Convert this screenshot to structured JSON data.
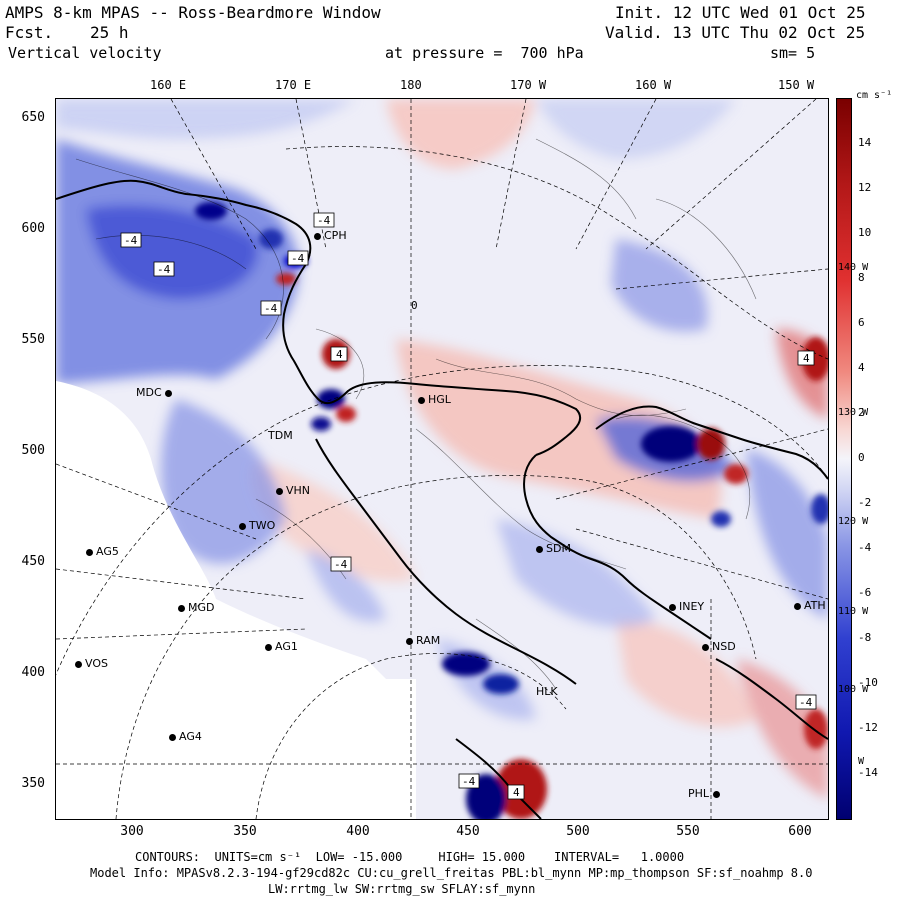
{
  "header": {
    "title": "AMPS 8-km MPAS -- Ross-Beardmore Window",
    "fcst_label": "Fcst.",
    "fcst_value": "25 h",
    "field": "Vertical velocity",
    "init": "Init. 12 UTC Wed 01 Oct 25",
    "valid": "Valid. 13 UTC Thu 02 Oct 25",
    "pressure": "at pressure =  700 hPa",
    "smooth": "sm= 5"
  },
  "lon_labels": [
    "160 E",
    "170 E",
    "180",
    "170 W",
    "160 W",
    "150 W"
  ],
  "y_ticks": [
    "650",
    "600",
    "550",
    "500",
    "450",
    "400",
    "350"
  ],
  "x_ticks": [
    "300",
    "350",
    "400",
    "450",
    "500",
    "550",
    "600"
  ],
  "colorbar": {
    "units": "cm s⁻¹",
    "ticks": [
      "14",
      "12",
      "10",
      "8",
      "6",
      "4",
      "2",
      "0",
      "-2",
      "-4",
      "-6",
      "-8",
      "-10",
      "-12",
      "-14"
    ],
    "side_labels": [
      "140 W",
      "130 W",
      "120 W",
      "110 W",
      "100 W",
      "W"
    ]
  },
  "stations": [
    {
      "name": "CPH"
    },
    {
      "name": "MDC"
    },
    {
      "name": "HGL"
    },
    {
      "name": "TDM"
    },
    {
      "name": "VHN"
    },
    {
      "name": "TWO"
    },
    {
      "name": "AG5"
    },
    {
      "name": "SDM"
    },
    {
      "name": "MGD"
    },
    {
      "name": "AG1"
    },
    {
      "name": "VOS"
    },
    {
      "name": "AG4"
    },
    {
      "name": "INEY"
    },
    {
      "name": "NSD"
    },
    {
      "name": "HLK"
    },
    {
      "name": "PHL"
    },
    {
      "name": "ATH"
    },
    {
      "name": "RAM"
    }
  ],
  "contour_labels": [
    "-4",
    "-4",
    "-4",
    "-4",
    "-4",
    "4",
    "-4",
    "-4",
    "4",
    "-4",
    "4",
    "0"
  ],
  "footer": {
    "contours": "CONTOURS:  UNITS=cm s⁻¹  LOW= -15.000     HIGH= 15.000    INTERVAL=   1.0000",
    "model": "Model Info: MPASv8.2.3-194-gf29cd82c CU:cu_grell_freitas PBL:bl_mynn MP:mp_thompson SF:sf_noahmp 8.0",
    "physics": "LW:rrtmg_lw SW:rrtmg_sw SFLAY:sf_mynn"
  },
  "colors": {
    "pos_dark": "#8b0000",
    "pos": "#e03030",
    "pos_light": "#f7c6c0",
    "neg_dark": "#00008b",
    "neg": "#3040d0",
    "neg_light": "#c8cef2",
    "neutral": "#f4f4fa"
  }
}
